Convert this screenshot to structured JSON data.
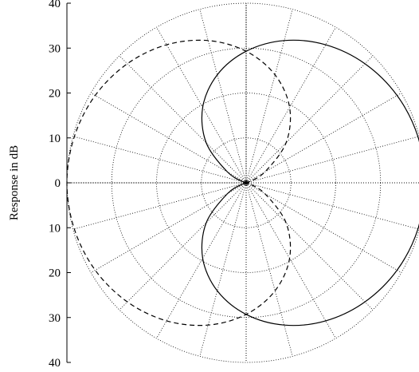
{
  "chart_data": {
    "type": "polar-line",
    "ylabel": "Response in dB",
    "y_tick_labels": [
      "40",
      "30",
      "20",
      "10",
      "0",
      "10",
      "20",
      "30",
      "40"
    ],
    "y_tick_values": [
      40,
      30,
      20,
      10,
      0,
      -10,
      -20,
      -30,
      -40
    ],
    "ylim": [
      -40,
      40
    ],
    "xlim": [
      -40,
      40
    ],
    "radial_grid": [
      10,
      20,
      30,
      40
    ],
    "angular_grid_step_deg": 15,
    "grid": true,
    "series": [
      {
        "style": "solid",
        "description_hint": "cardioid-like lobe oriented toward 0 deg",
        "polar_points": [
          {
            "angle_deg": 0,
            "r": 40
          },
          {
            "angle_deg": 15,
            "r": 39.7
          },
          {
            "angle_deg": 30,
            "r": 38.9
          },
          {
            "angle_deg": 45,
            "r": 37.5
          },
          {
            "angle_deg": 60,
            "r": 35.5
          },
          {
            "angle_deg": 75,
            "r": 32.8
          },
          {
            "angle_deg": 90,
            "r": 29.3
          },
          {
            "angle_deg": 105,
            "r": 24.9
          },
          {
            "angle_deg": 120,
            "r": 19.4
          },
          {
            "angle_deg": 135,
            "r": 12.6
          },
          {
            "angle_deg": 150,
            "r": 4.8
          },
          {
            "angle_deg": 165,
            "r": 0.5
          },
          {
            "angle_deg": 180,
            "r": 0
          }
        ]
      },
      {
        "style": "dashed",
        "description_hint": "lobe oriented toward 180 deg",
        "polar_points": [
          {
            "angle_deg": 0,
            "r": 0
          },
          {
            "angle_deg": 15,
            "r": 0.5
          },
          {
            "angle_deg": 30,
            "r": 4.8
          },
          {
            "angle_deg": 45,
            "r": 12.6
          },
          {
            "angle_deg": 60,
            "r": 19.4
          },
          {
            "angle_deg": 75,
            "r": 24.9
          },
          {
            "angle_deg": 90,
            "r": 29.3
          },
          {
            "angle_deg": 105,
            "r": 32.8
          },
          {
            "angle_deg": 120,
            "r": 35.5
          },
          {
            "angle_deg": 135,
            "r": 37.5
          },
          {
            "angle_deg": 150,
            "r": 38.9
          },
          {
            "angle_deg": 165,
            "r": 39.7
          },
          {
            "angle_deg": 180,
            "r": 40
          }
        ]
      }
    ]
  }
}
